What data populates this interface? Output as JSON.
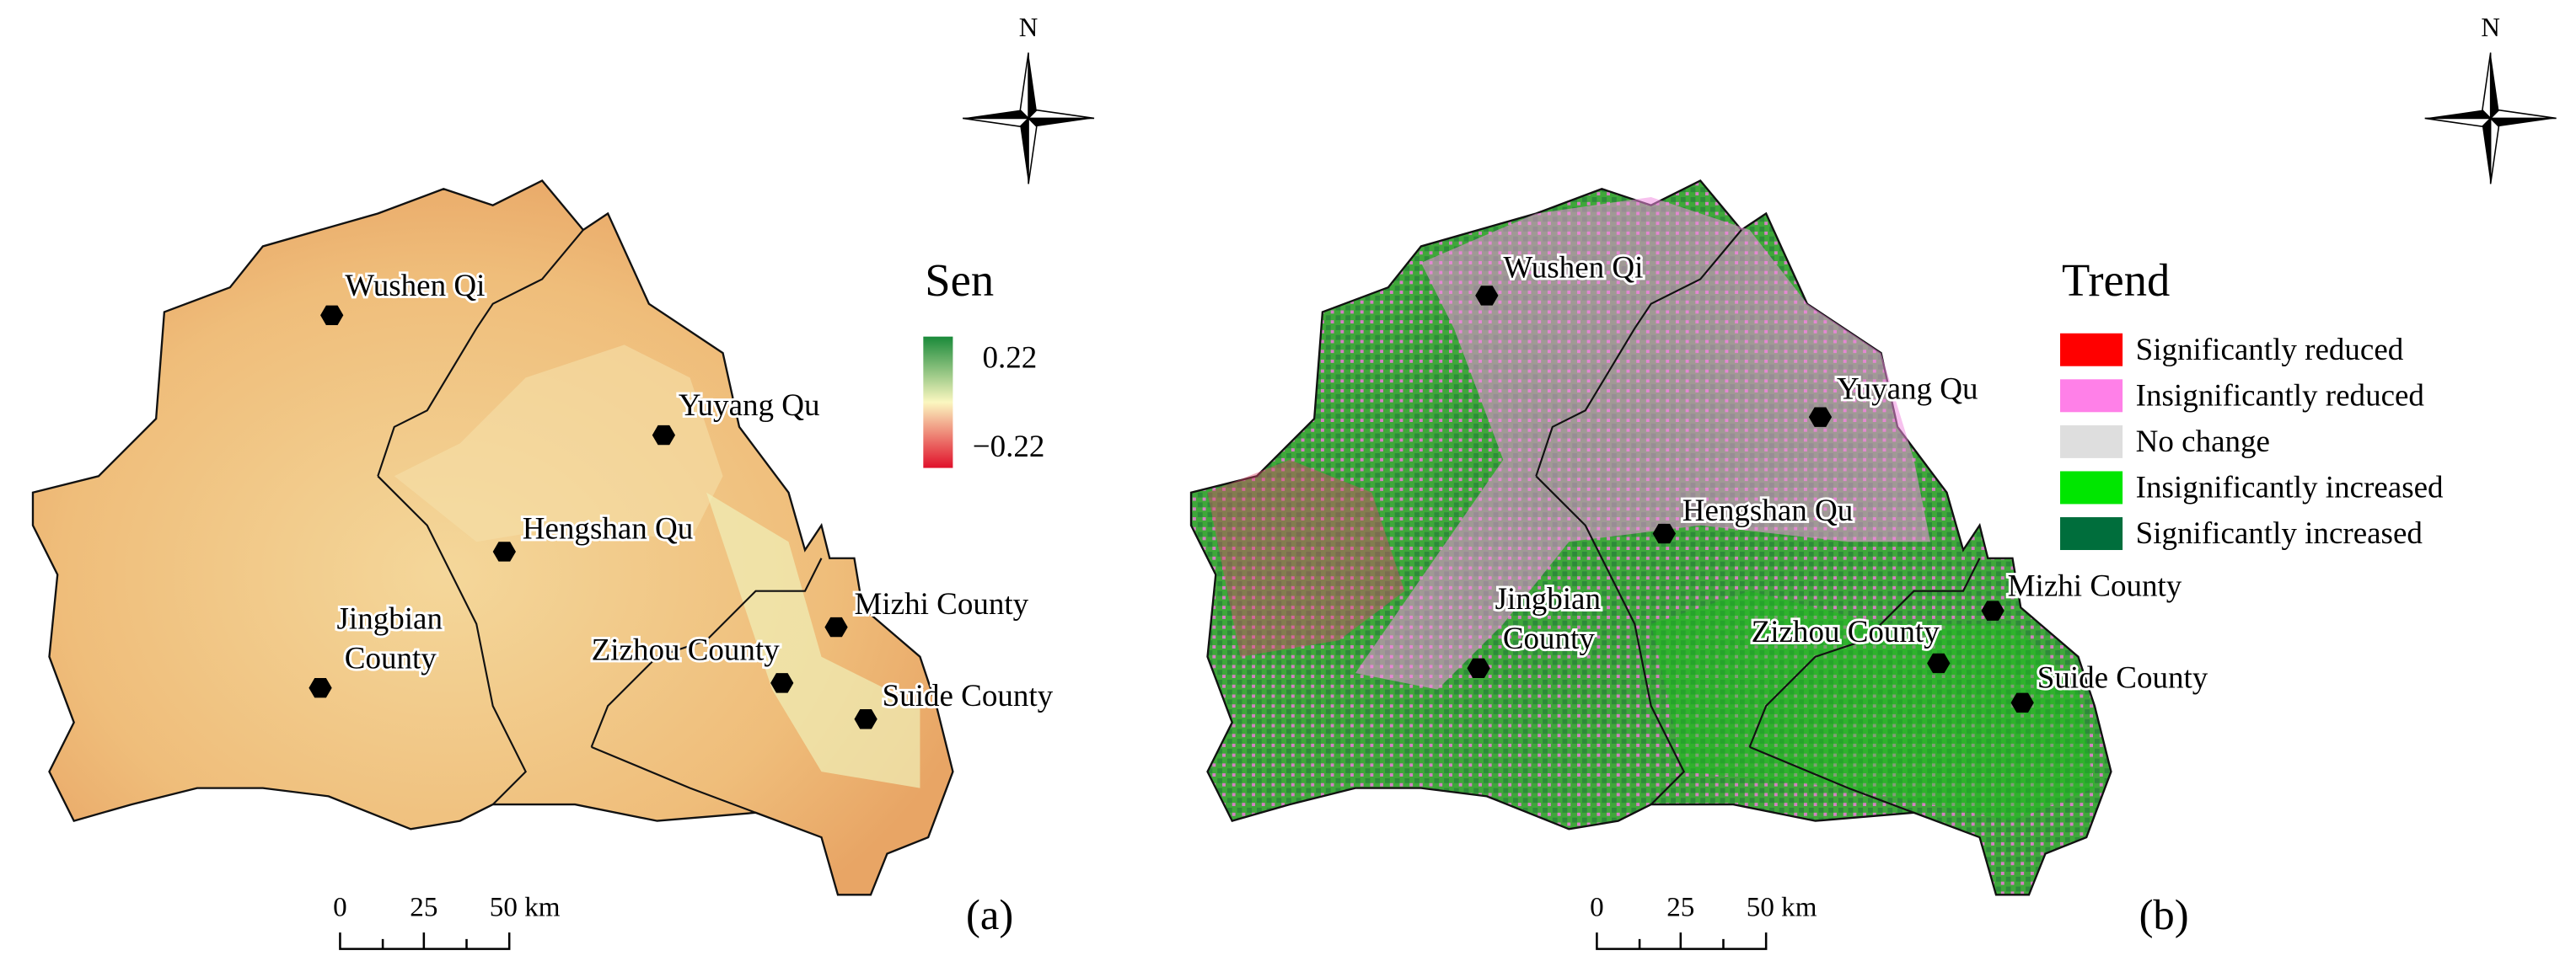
{
  "panels": [
    {
      "label": "(a)",
      "legend": {
        "title": "Sen",
        "items": [
          "0.22",
          "−0.22"
        ]
      },
      "cities": [
        "Wushen Qi",
        "Yuyang Qu",
        "Hengshan Qu",
        "Jingbian County",
        "Mizhi County",
        "Zizhou County",
        "Suide County"
      ],
      "scale_bar": [
        "0",
        "25",
        "50 km"
      ],
      "north": "N"
    },
    {
      "label": "(b)",
      "legend": {
        "title": "Trend",
        "items": [
          "Significantly reduced",
          "Insignificantly reduced",
          "No change",
          "Insignificantly increased",
          "Significantly increased"
        ]
      },
      "cities": [
        "Wushen Qi",
        "Yuyang Qu",
        "Hengshan Qu",
        "Jingbian County",
        "Mizhi County",
        "Zizhou County",
        "Suide County"
      ],
      "scale_bar": [
        "0",
        "25",
        "50 km"
      ],
      "north": "N"
    }
  ]
}
